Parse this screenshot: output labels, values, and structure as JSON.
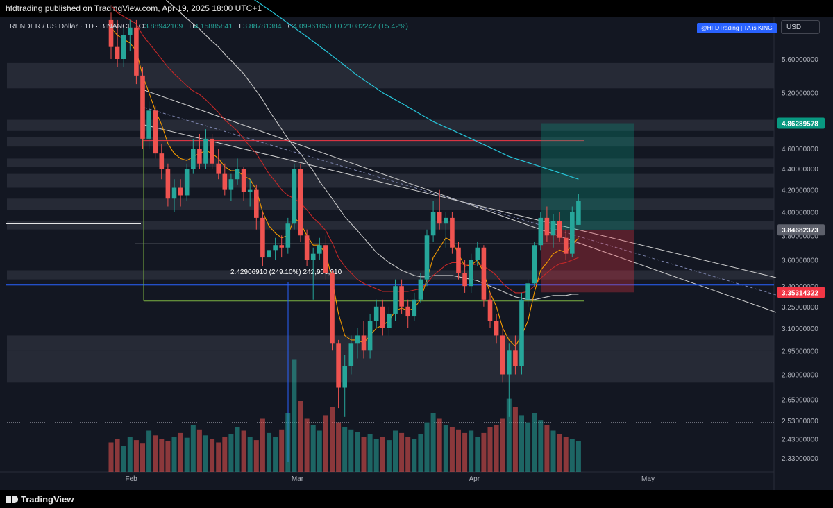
{
  "header": {
    "publish_line": "hfdtrading published on TradingView.com, Apr 19, 2025 18:00 UTC+1"
  },
  "symbol": {
    "name": "RENDER / US Dollar · 1D · BINANCE",
    "o_label": "O",
    "o": "3.88942109",
    "h_label": "H",
    "h": "4.15885841",
    "l_label": "L",
    "l": "3.88781384",
    "c_label": "C",
    "c": "4.09961050",
    "change": "+0.21082247 (+5.42%)"
  },
  "badge": "@HFDTrading | TA is KING",
  "currency": "USD",
  "footer": {
    "brand": "TradingView"
  },
  "colors": {
    "bull": "#26a69a",
    "bear": "#ef5350",
    "bg": "#131722",
    "price_green": "#089981",
    "price_red": "#f23645",
    "blue_line": "#2962ff"
  },
  "chart_data": {
    "type": "candlestick",
    "title": "",
    "x_tick_labels": [
      "Feb",
      "Mar",
      "Apr",
      "May"
    ],
    "y_tick_labels": [
      "5.60000000",
      "5.20000000",
      "4.60000000",
      "4.40000000",
      "4.20000000",
      "4.00000000",
      "3.80000000",
      "3.60000000",
      "3.40000000",
      "3.25000000",
      "3.10000000",
      "2.95000000",
      "2.80000000",
      "2.65000000",
      "2.53000000",
      "2.43000000",
      "2.33000000"
    ],
    "y_tick_values": [
      5.6,
      5.2,
      4.6,
      4.4,
      4.2,
      4.0,
      3.8,
      3.6,
      3.4,
      3.25,
      3.1,
      2.95,
      2.8,
      2.65,
      2.53,
      2.43,
      2.33
    ],
    "y_scale": "log",
    "price_labels": [
      {
        "text": "4.86289578",
        "value": 4.86289578,
        "color": "#089981"
      },
      {
        "text": "3.84682373",
        "value": 3.84682373,
        "color": "#5d606b"
      },
      {
        "text": "3.35314322",
        "value": 3.35314322,
        "color": "#f23645"
      }
    ],
    "measure_label": "2.42906910 (249.10%) 242,906,910",
    "candles": [
      {
        "d": 0,
        "o": 6.1,
        "h": 6.2,
        "l": 5.6,
        "c": 5.75
      },
      {
        "d": 1,
        "o": 5.75,
        "h": 6.1,
        "l": 5.5,
        "c": 5.6
      },
      {
        "d": 2,
        "o": 5.6,
        "h": 6.0,
        "l": 5.5,
        "c": 5.9
      },
      {
        "d": 3,
        "o": 5.9,
        "h": 6.1,
        "l": 5.7,
        "c": 6.0
      },
      {
        "d": 4,
        "o": 6.0,
        "h": 6.1,
        "l": 5.3,
        "c": 5.4
      },
      {
        "d": 5,
        "o": 5.4,
        "h": 5.5,
        "l": 4.6,
        "c": 4.7
      },
      {
        "d": 6,
        "o": 4.7,
        "h": 5.1,
        "l": 4.6,
        "c": 5.0
      },
      {
        "d": 7,
        "o": 5.0,
        "h": 5.05,
        "l": 4.5,
        "c": 4.55
      },
      {
        "d": 8,
        "o": 4.55,
        "h": 4.65,
        "l": 4.3,
        "c": 4.4
      },
      {
        "d": 9,
        "o": 4.4,
        "h": 4.45,
        "l": 4.05,
        "c": 4.12
      },
      {
        "d": 10,
        "o": 4.12,
        "h": 4.3,
        "l": 4.0,
        "c": 4.22
      },
      {
        "d": 11,
        "o": 4.22,
        "h": 4.3,
        "l": 4.05,
        "c": 4.15
      },
      {
        "d": 12,
        "o": 4.15,
        "h": 4.45,
        "l": 4.1,
        "c": 4.4
      },
      {
        "d": 13,
        "o": 4.4,
        "h": 4.7,
        "l": 4.35,
        "c": 4.6
      },
      {
        "d": 14,
        "o": 4.6,
        "h": 4.75,
        "l": 4.4,
        "c": 4.45
      },
      {
        "d": 15,
        "o": 4.45,
        "h": 4.8,
        "l": 4.4,
        "c": 4.7
      },
      {
        "d": 16,
        "o": 4.7,
        "h": 4.75,
        "l": 4.4,
        "c": 4.45
      },
      {
        "d": 17,
        "o": 4.45,
        "h": 4.6,
        "l": 4.3,
        "c": 4.35
      },
      {
        "d": 18,
        "o": 4.35,
        "h": 4.45,
        "l": 4.15,
        "c": 4.2
      },
      {
        "d": 19,
        "o": 4.2,
        "h": 4.35,
        "l": 4.1,
        "c": 4.3
      },
      {
        "d": 20,
        "o": 4.3,
        "h": 4.5,
        "l": 4.25,
        "c": 4.4
      },
      {
        "d": 21,
        "o": 4.4,
        "h": 4.42,
        "l": 4.1,
        "c": 4.18
      },
      {
        "d": 22,
        "o": 4.18,
        "h": 4.3,
        "l": 4.05,
        "c": 4.2
      },
      {
        "d": 23,
        "o": 4.2,
        "h": 4.25,
        "l": 3.85,
        "c": 3.95
      },
      {
        "d": 24,
        "o": 3.95,
        "h": 4.0,
        "l": 3.55,
        "c": 3.62
      },
      {
        "d": 25,
        "o": 3.62,
        "h": 3.75,
        "l": 3.58,
        "c": 3.68
      },
      {
        "d": 26,
        "o": 3.68,
        "h": 3.78,
        "l": 3.6,
        "c": 3.72
      },
      {
        "d": 27,
        "o": 3.72,
        "h": 3.8,
        "l": 3.62,
        "c": 3.7
      },
      {
        "d": 28,
        "o": 3.7,
        "h": 3.95,
        "l": 3.65,
        "c": 3.9
      },
      {
        "d": 29,
        "o": 3.9,
        "h": 4.45,
        "l": 3.85,
        "c": 4.4
      },
      {
        "d": 30,
        "o": 4.4,
        "h": 4.45,
        "l": 3.75,
        "c": 3.8
      },
      {
        "d": 31,
        "o": 3.8,
        "h": 3.85,
        "l": 3.55,
        "c": 3.6
      },
      {
        "d": 32,
        "o": 3.6,
        "h": 3.7,
        "l": 3.3,
        "c": 3.65
      },
      {
        "d": 33,
        "o": 3.65,
        "h": 3.78,
        "l": 3.6,
        "c": 3.72
      },
      {
        "d": 34,
        "o": 3.72,
        "h": 3.8,
        "l": 3.45,
        "c": 3.5
      },
      {
        "d": 35,
        "o": 3.5,
        "h": 3.52,
        "l": 2.95,
        "c": 3.0
      },
      {
        "d": 36,
        "o": 3.0,
        "h": 3.02,
        "l": 2.6,
        "c": 2.72
      },
      {
        "d": 37,
        "o": 2.72,
        "h": 2.92,
        "l": 2.55,
        "c": 2.85
      },
      {
        "d": 38,
        "o": 2.85,
        "h": 3.05,
        "l": 2.8,
        "c": 3.0
      },
      {
        "d": 39,
        "o": 3.0,
        "h": 3.1,
        "l": 2.9,
        "c": 3.05
      },
      {
        "d": 40,
        "o": 3.05,
        "h": 3.15,
        "l": 2.9,
        "c": 2.95
      },
      {
        "d": 41,
        "o": 2.95,
        "h": 3.2,
        "l": 2.9,
        "c": 3.15
      },
      {
        "d": 42,
        "o": 3.15,
        "h": 3.3,
        "l": 3.1,
        "c": 3.25
      },
      {
        "d": 43,
        "o": 3.25,
        "h": 3.3,
        "l": 3.05,
        "c": 3.1
      },
      {
        "d": 44,
        "o": 3.1,
        "h": 3.25,
        "l": 3.05,
        "c": 3.2
      },
      {
        "d": 45,
        "o": 3.2,
        "h": 3.45,
        "l": 3.15,
        "c": 3.4
      },
      {
        "d": 46,
        "o": 3.4,
        "h": 3.45,
        "l": 3.2,
        "c": 3.25
      },
      {
        "d": 47,
        "o": 3.25,
        "h": 3.3,
        "l": 3.1,
        "c": 3.18
      },
      {
        "d": 48,
        "o": 3.18,
        "h": 3.35,
        "l": 3.15,
        "c": 3.3
      },
      {
        "d": 49,
        "o": 3.3,
        "h": 3.5,
        "l": 3.28,
        "c": 3.45
      },
      {
        "d": 50,
        "o": 3.45,
        "h": 3.85,
        "l": 3.4,
        "c": 3.8
      },
      {
        "d": 51,
        "o": 3.8,
        "h": 4.1,
        "l": 3.75,
        "c": 4.0
      },
      {
        "d": 52,
        "o": 4.0,
        "h": 4.2,
        "l": 3.85,
        "c": 3.9
      },
      {
        "d": 53,
        "o": 3.9,
        "h": 4.0,
        "l": 3.7,
        "c": 3.95
      },
      {
        "d": 54,
        "o": 3.95,
        "h": 4.0,
        "l": 3.65,
        "c": 3.7
      },
      {
        "d": 55,
        "o": 3.7,
        "h": 3.75,
        "l": 3.45,
        "c": 3.5
      },
      {
        "d": 56,
        "o": 3.5,
        "h": 3.6,
        "l": 3.35,
        "c": 3.4
      },
      {
        "d": 57,
        "o": 3.4,
        "h": 3.65,
        "l": 3.35,
        "c": 3.6
      },
      {
        "d": 58,
        "o": 3.6,
        "h": 3.75,
        "l": 3.55,
        "c": 3.7
      },
      {
        "d": 59,
        "o": 3.7,
        "h": 3.72,
        "l": 3.25,
        "c": 3.3
      },
      {
        "d": 60,
        "o": 3.3,
        "h": 3.35,
        "l": 3.1,
        "c": 3.15
      },
      {
        "d": 61,
        "o": 3.15,
        "h": 3.2,
        "l": 3.0,
        "c": 3.05
      },
      {
        "d": 62,
        "o": 3.05,
        "h": 3.1,
        "l": 2.75,
        "c": 2.8
      },
      {
        "d": 63,
        "o": 2.8,
        "h": 3.0,
        "l": 2.55,
        "c": 2.95
      },
      {
        "d": 64,
        "o": 2.95,
        "h": 3.05,
        "l": 2.8,
        "c": 2.85
      },
      {
        "d": 65,
        "o": 2.85,
        "h": 3.35,
        "l": 2.8,
        "c": 3.3
      },
      {
        "d": 66,
        "o": 3.3,
        "h": 3.45,
        "l": 3.25,
        "c": 3.42
      },
      {
        "d": 67,
        "o": 3.42,
        "h": 3.75,
        "l": 3.4,
        "c": 3.72
      },
      {
        "d": 68,
        "o": 3.72,
        "h": 4.0,
        "l": 3.68,
        "c": 3.95
      },
      {
        "d": 69,
        "o": 3.95,
        "h": 4.05,
        "l": 3.75,
        "c": 3.8
      },
      {
        "d": 70,
        "o": 3.8,
        "h": 3.98,
        "l": 3.7,
        "c": 3.92
      },
      {
        "d": 71,
        "o": 3.92,
        "h": 4.0,
        "l": 3.75,
        "c": 3.78
      },
      {
        "d": 72,
        "o": 3.78,
        "h": 3.85,
        "l": 3.6,
        "c": 3.65
      },
      {
        "d": 73,
        "o": 3.65,
        "h": 4.05,
        "l": 3.62,
        "c": 4.0
      },
      {
        "d": 74,
        "o": 3.89,
        "h": 4.16,
        "l": 3.89,
        "c": 4.1
      }
    ],
    "volume": [
      0.25,
      0.28,
      0.22,
      0.3,
      0.27,
      0.24,
      0.35,
      0.31,
      0.28,
      0.26,
      0.3,
      0.33,
      0.29,
      0.4,
      0.36,
      0.31,
      0.28,
      0.25,
      0.3,
      0.32,
      0.38,
      0.35,
      0.3,
      0.27,
      0.45,
      0.33,
      0.3,
      0.36,
      0.5,
      0.95,
      0.6,
      0.45,
      0.4,
      0.35,
      0.48,
      0.55,
      0.42,
      0.38,
      0.36,
      0.34,
      0.3,
      0.32,
      0.28,
      0.3,
      0.27,
      0.35,
      0.33,
      0.3,
      0.28,
      0.32,
      0.42,
      0.5,
      0.45,
      0.4,
      0.38,
      0.36,
      0.33,
      0.35,
      0.3,
      0.33,
      0.38,
      0.4,
      0.45,
      0.62,
      0.55,
      0.48,
      0.42,
      0.5,
      0.44,
      0.4,
      0.35,
      0.32,
      0.3,
      0.28,
      0.26
    ],
    "ema_short": [
      6.0,
      5.9,
      5.85,
      5.8,
      5.7,
      5.4,
      5.2,
      5.0,
      4.85,
      4.65,
      4.55,
      4.5,
      4.48,
      4.52,
      4.55,
      4.58,
      4.55,
      4.5,
      4.42,
      4.38,
      4.38,
      4.33,
      4.3,
      4.2,
      4.0,
      3.88,
      3.82,
      3.78,
      3.8,
      3.95,
      3.9,
      3.8,
      3.72,
      3.72,
      3.65,
      3.45,
      3.2,
      3.05,
      3.02,
      3.02,
      3.0,
      3.05,
      3.1,
      3.12,
      3.15,
      3.22,
      3.24,
      3.22,
      3.24,
      3.3,
      3.45,
      3.62,
      3.7,
      3.78,
      3.75,
      3.65,
      3.55,
      3.56,
      3.6,
      3.5,
      3.35,
      3.25,
      3.1,
      3.02,
      2.98,
      3.05,
      3.15,
      3.35,
      3.52,
      3.58,
      3.65,
      3.68,
      3.66,
      3.72,
      3.78
    ],
    "ema_mid": [
      6.3,
      6.2,
      6.15,
      6.1,
      6.05,
      5.9,
      5.8,
      5.7,
      5.6,
      5.5,
      5.42,
      5.35,
      5.28,
      5.22,
      5.18,
      5.12,
      5.05,
      4.98,
      4.9,
      4.84,
      4.78,
      4.7,
      4.62,
      4.55,
      4.45,
      4.35,
      4.28,
      4.2,
      4.15,
      4.12,
      4.08,
      4.02,
      3.95,
      3.9,
      3.84,
      3.74,
      3.62,
      3.55,
      3.5,
      3.45,
      3.42,
      3.4,
      3.38,
      3.36,
      3.36,
      3.36,
      3.36,
      3.36,
      3.37,
      3.38,
      3.42,
      3.48,
      3.52,
      3.56,
      3.58,
      3.58,
      3.56,
      3.56,
      3.57,
      3.55,
      3.52,
      3.48,
      3.42,
      3.38,
      3.35,
      3.35,
      3.36,
      3.4,
      3.46,
      3.5,
      3.54,
      3.57,
      3.58,
      3.6,
      3.62
    ],
    "ema_slow": [
      7.2,
      7.1,
      7.0,
      6.9,
      6.85,
      6.75,
      6.65,
      6.55,
      6.45,
      6.35,
      6.28,
      6.2,
      6.12,
      6.05,
      5.98,
      5.9,
      5.82,
      5.75,
      5.66,
      5.58,
      5.5,
      5.42,
      5.32,
      5.22,
      5.12,
      5.0,
      4.9,
      4.8,
      4.7,
      4.62,
      4.55,
      4.46,
      4.38,
      4.28,
      4.2,
      4.12,
      4.04,
      3.96,
      3.9,
      3.84,
      3.78,
      3.72,
      3.66,
      3.62,
      3.58,
      3.55,
      3.52,
      3.5,
      3.48,
      3.47,
      3.47,
      3.48,
      3.48,
      3.48,
      3.48,
      3.47,
      3.46,
      3.45,
      3.44,
      3.42,
      3.4,
      3.38,
      3.36,
      3.34,
      3.32,
      3.31,
      3.3,
      3.3,
      3.31,
      3.32,
      3.33,
      3.33,
      3.33,
      3.34,
      3.34
    ],
    "ema_teal": [
      8.0,
      7.9,
      7.8,
      7.7,
      7.62,
      7.55,
      7.47,
      7.4,
      7.32,
      7.25,
      7.18,
      7.1,
      7.03,
      6.96,
      6.9,
      6.84,
      6.78,
      6.72,
      6.66,
      6.6,
      6.54,
      6.48,
      6.42,
      6.36,
      6.3,
      6.24,
      6.18,
      6.12,
      6.06,
      6.0,
      5.94,
      5.88,
      5.82,
      5.76,
      5.7,
      5.64,
      5.58,
      5.52,
      5.46,
      5.4,
      5.35,
      5.3,
      5.25,
      5.2,
      5.16,
      5.12,
      5.08,
      5.04,
      5.0,
      4.96,
      4.92,
      4.88,
      4.85,
      4.82,
      4.79,
      4.76,
      4.73,
      4.7,
      4.67,
      4.64,
      4.61,
      4.58,
      4.55,
      4.52,
      4.5,
      4.48,
      4.46,
      4.44,
      4.42,
      4.4,
      4.38,
      4.36,
      4.34,
      4.32,
      4.3
    ]
  }
}
